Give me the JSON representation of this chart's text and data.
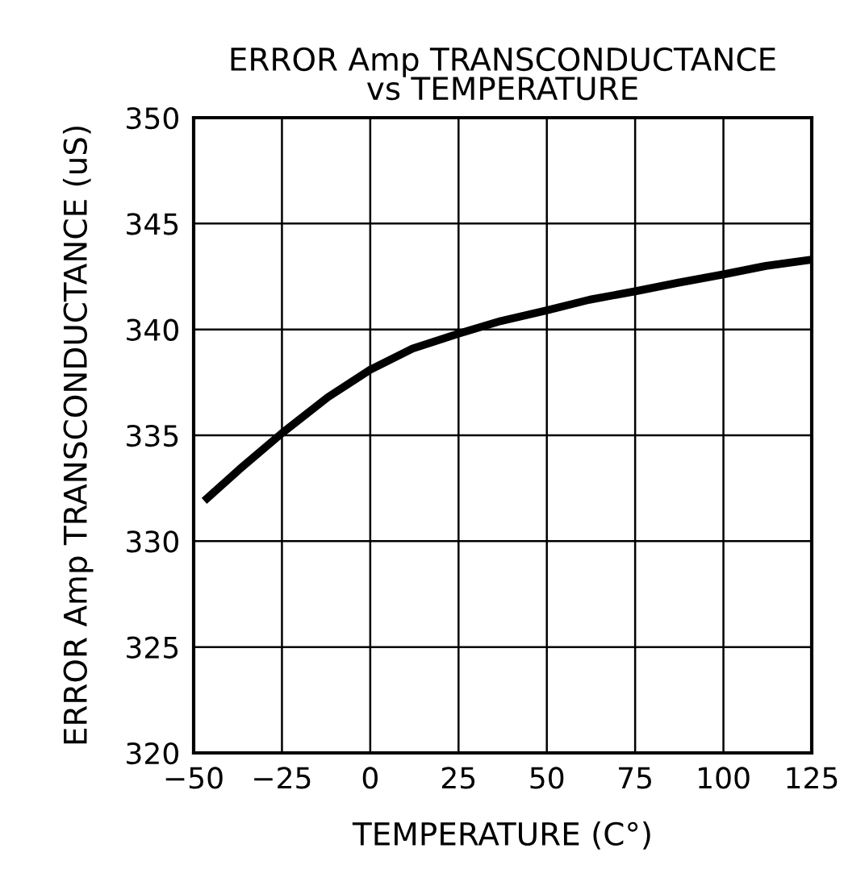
{
  "chart_data": {
    "type": "line",
    "title": "ERROR Amp TRANSCONDUCTANCE\nvs TEMPERATURE",
    "xlabel": "TEMPERATURE (C°)",
    "ylabel": "ERROR Amp TRANSCONDUCTANCE (uS)",
    "series": [
      {
        "color": "#000000",
        "x": [
          -47,
          -37,
          -25,
          -12,
          0,
          12,
          25,
          37,
          50,
          62,
          75,
          87,
          100,
          112,
          125
        ],
        "values": [
          331.9,
          333.4,
          335.1,
          336.8,
          338.1,
          339.1,
          339.8,
          340.4,
          340.9,
          341.4,
          341.8,
          342.2,
          342.6,
          343.0,
          343.3
        ]
      }
    ],
    "xlim": [
      -50,
      125
    ],
    "xticks": [
      {
        "value": -50,
        "label": "−50"
      },
      {
        "value": -25,
        "label": "−25"
      },
      0,
      25,
      50,
      75,
      100,
      125
    ],
    "ylim": [
      320,
      350
    ],
    "yticks": [
      320,
      325,
      330,
      335,
      340,
      345,
      350
    ],
    "grid": true,
    "line_style": "solid",
    "marker": "none"
  }
}
